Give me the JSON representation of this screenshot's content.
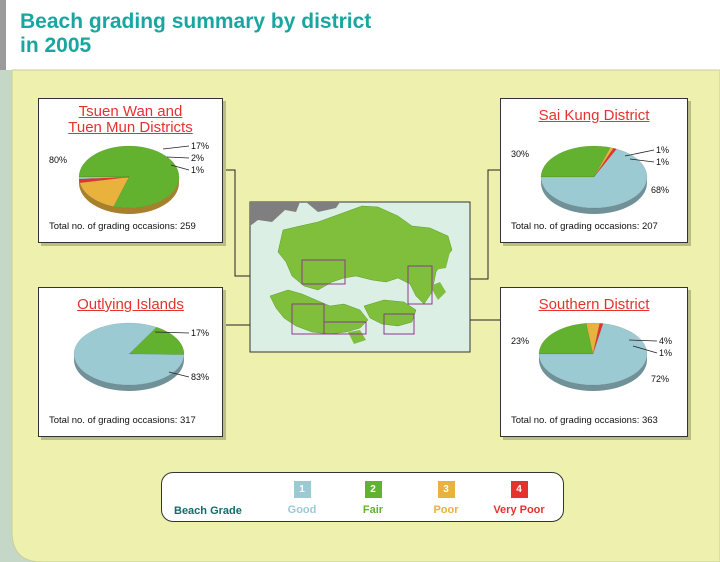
{
  "title_line1": "Beach grading summary by district",
  "title_line2": "in 2005",
  "colors": {
    "good": "#9ccad3",
    "fair": "#62b230",
    "poor": "#e8b23c",
    "very_poor": "#e6322d",
    "background": "#eef0ae",
    "title": "#1aa6a0"
  },
  "chart_data": [
    {
      "type": "pie",
      "title": "Tsuen Wan and Tuen Mun Districts",
      "title_lines": [
        "Tsuen Wan and",
        "Tuen Mun Districts"
      ],
      "categories": [
        "Fair",
        "Poor",
        "Very Poor",
        "Good"
      ],
      "values": [
        80,
        17,
        2,
        1
      ],
      "labels": [
        "80%",
        "17%",
        "2%",
        "1%"
      ],
      "total_label": "Total no. of grading occasions: 259"
    },
    {
      "type": "pie",
      "title": "Sai Kung District",
      "title_lines": [
        "Sai Kung District"
      ],
      "categories": [
        "Fair",
        "Poor",
        "Very Poor",
        "Good"
      ],
      "values": [
        30,
        1,
        1,
        68
      ],
      "labels": [
        "30%",
        "1%",
        "1%",
        "68%"
      ],
      "total_label": "Total no. of grading occasions: 207"
    },
    {
      "type": "pie",
      "title": "Outlying Islands",
      "title_lines": [
        "Outlying Islands"
      ],
      "categories": [
        "Fair",
        "Good"
      ],
      "values": [
        17,
        83
      ],
      "labels": [
        "17%",
        "83%"
      ],
      "total_label": "Total no. of grading occasions: 317"
    },
    {
      "type": "pie",
      "title": "Southern District",
      "title_lines": [
        "Southern District"
      ],
      "categories": [
        "Fair",
        "Poor",
        "Very Poor",
        "Good"
      ],
      "values": [
        23,
        4,
        1,
        72
      ],
      "labels": [
        "23%",
        "4%",
        "1%",
        "72%"
      ],
      "total_label": "Total no. of grading occasions: 363"
    }
  ],
  "legend": {
    "title": "Beach Grade",
    "items": [
      {
        "number": "1",
        "label": "Good",
        "color": "#9ccad3"
      },
      {
        "number": "2",
        "label": "Fair",
        "color": "#62b230"
      },
      {
        "number": "3",
        "label": "Poor",
        "color": "#e8b23c"
      },
      {
        "number": "4",
        "label": "Very Poor",
        "color": "#e6322d"
      }
    ]
  }
}
